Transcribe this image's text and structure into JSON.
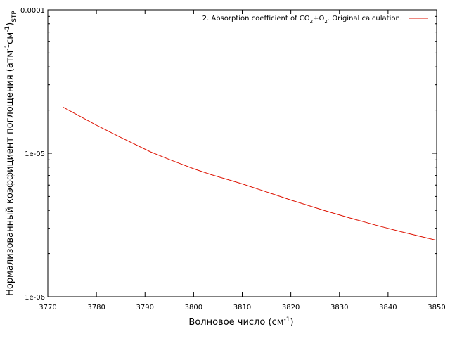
{
  "chart_data": {
    "type": "line",
    "title": "",
    "xlabel": "Волновое число (см",
    "xlabel_sup": "-1",
    "xlabel_end": ")",
    "ylabel": "Нормализованный коэффициент поглощения (атм",
    "ylabel_sup1": "-1",
    "ylabel_mid": "см",
    "ylabel_sup2": "-1",
    "ylabel_end": ")",
    "ylabel_sub": "STP",
    "xlim": [
      3770,
      3850
    ],
    "ylim": [
      1e-06,
      0.0001
    ],
    "y_scale": "log",
    "grid": false,
    "legend_position": "top-right",
    "x_ticks": [
      3770,
      3780,
      3790,
      3800,
      3810,
      3820,
      3830,
      3840,
      3850
    ],
    "x_tick_labels": [
      "3770",
      "3780",
      "3790",
      "3800",
      "3810",
      "3820",
      "3830",
      "3840",
      "3850"
    ],
    "y_ticks": [
      1e-06,
      1e-05,
      0.0001
    ],
    "y_tick_labels": [
      "1e-06",
      "1e-05",
      "0.0001"
    ],
    "series": [
      {
        "name_parts": {
          "a": "2. Absorption coefficient of CO",
          "b": "2",
          "c": "+O",
          "d": "2",
          "e": ". Original calculation."
        },
        "color": "#dd1100",
        "x": [
          3773.1,
          3780,
          3785,
          3791.2,
          3795,
          3800,
          3803.6,
          3810,
          3815,
          3820,
          3827,
          3832,
          3838,
          3843,
          3849.8
        ],
        "y": [
          2.1e-05,
          1.57e-05,
          1.29e-05,
          1.02e-05,
          9.05e-06,
          7.8e-06,
          7.1e-06,
          6.12e-06,
          5.38e-06,
          4.72e-06,
          3.98e-06,
          3.55e-06,
          3.12e-06,
          2.82e-06,
          2.48e-06
        ]
      }
    ]
  },
  "colors": {
    "axis": "#000000",
    "series": "#dd1100"
  }
}
